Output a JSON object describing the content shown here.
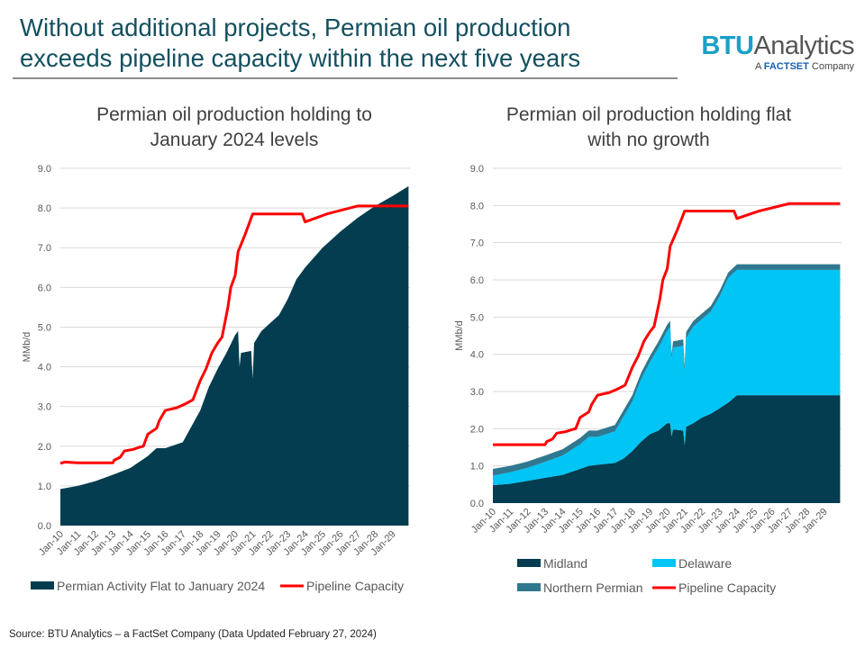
{
  "headline": {
    "line1": "Without additional projects, Permian oil production",
    "line2": "exceeds pipeline capacity within the next five years"
  },
  "logo": {
    "brand_bold": "BTU",
    "brand_rest": "Analytics",
    "tag_prefix": "A",
    "tag_brand": "FACTSET",
    "tag_suffix": "Company"
  },
  "footer": "Source: BTU Analytics – a FactSet Company (Data Updated February 27, 2024)",
  "colors": {
    "midland": "#033d4f",
    "delaware": "#00c5f5",
    "northern_permian": "#2f7890",
    "pipeline": "#ff0000",
    "production": "#033d4f",
    "title": "#14505f"
  },
  "chart_data": [
    {
      "type": "area",
      "title_line1": "Permian oil production holding to",
      "title_line2": "January 2024 levels",
      "ylabel": "MMb/d",
      "ylim": [
        0,
        9
      ],
      "yticks": [
        "0.0",
        "1.0",
        "2.0",
        "3.0",
        "4.0",
        "5.0",
        "6.0",
        "7.0",
        "8.0",
        "9.0"
      ],
      "xticks": [
        "Jan-10",
        "Jan-11",
        "Jan-12",
        "Jan-13",
        "Jan-14",
        "Jan-15",
        "Jan-16",
        "Jan-17",
        "Jan-18",
        "Jan-19",
        "Jan-20",
        "Jan-21",
        "Jan-22",
        "Jan-23",
        "Jan-24",
        "Jan-25",
        "Jan-26",
        "Jan-27",
        "Jan-28",
        "Jan-29"
      ],
      "grid": true,
      "legend_position": "bottom",
      "x": [
        "2010-01",
        "2011-01",
        "2012-01",
        "2013-01",
        "2014-01",
        "2015-01",
        "2015-07",
        "2016-01",
        "2017-01",
        "2017-07",
        "2018-01",
        "2018-07",
        "2019-01",
        "2019-07",
        "2020-01",
        "2020-03",
        "2020-04",
        "2020-05",
        "2020-12",
        "2021-01",
        "2021-02",
        "2021-07",
        "2022-01",
        "2022-07",
        "2023-01",
        "2023-07",
        "2024-01",
        "2025-01",
        "2026-01",
        "2027-01",
        "2028-01",
        "2029-01",
        "2029-12"
      ],
      "series": [
        {
          "name": "Permian Activity Flat to January 2024",
          "kind": "area",
          "values": [
            0.92,
            1.0,
            1.12,
            1.28,
            1.45,
            1.75,
            1.95,
            1.95,
            2.1,
            2.5,
            2.9,
            3.5,
            3.95,
            4.35,
            4.8,
            4.9,
            4.0,
            4.35,
            4.4,
            3.7,
            4.6,
            4.9,
            5.1,
            5.3,
            5.7,
            6.2,
            6.5,
            7.0,
            7.4,
            7.75,
            8.05,
            8.3,
            8.55
          ]
        },
        {
          "name": "Pipeline Capacity",
          "kind": "step-line",
          "points": [
            [
              "2010-01",
              1.57
            ],
            [
              "2010-04",
              1.6
            ],
            [
              "2011-01",
              1.58
            ],
            [
              "2013-01",
              1.58
            ],
            [
              "2013-02",
              1.65
            ],
            [
              "2013-06",
              1.72
            ],
            [
              "2013-09",
              1.88
            ],
            [
              "2014-03",
              1.92
            ],
            [
              "2014-07",
              1.97
            ],
            [
              "2014-10",
              2.0
            ],
            [
              "2015-01",
              2.3
            ],
            [
              "2015-07",
              2.45
            ],
            [
              "2015-09",
              2.65
            ],
            [
              "2016-01",
              2.9
            ],
            [
              "2016-09",
              2.97
            ],
            [
              "2017-03",
              3.07
            ],
            [
              "2017-08",
              3.17
            ],
            [
              "2018-01",
              3.65
            ],
            [
              "2018-05",
              3.95
            ],
            [
              "2018-09",
              4.35
            ],
            [
              "2019-01",
              4.6
            ],
            [
              "2019-04",
              4.75
            ],
            [
              "2019-08",
              5.5
            ],
            [
              "2019-10",
              6.0
            ],
            [
              "2020-01",
              6.3
            ],
            [
              "2020-03",
              6.9
            ],
            [
              "2020-08",
              7.35
            ],
            [
              "2020-10",
              7.55
            ],
            [
              "2021-01",
              7.85
            ],
            [
              "2023-11",
              7.85
            ],
            [
              "2024-01",
              7.65
            ],
            [
              "2025-04",
              7.85
            ],
            [
              "2027-01",
              8.05
            ],
            [
              "2029-12",
              8.05
            ]
          ]
        }
      ]
    },
    {
      "type": "area",
      "title_line1": "Permian oil production holding flat",
      "title_line2": "with no growth",
      "ylabel": "MMb/d",
      "ylim": [
        0,
        9
      ],
      "yticks": [
        "0.0",
        "1.0",
        "2.0",
        "3.0",
        "4.0",
        "5.0",
        "6.0",
        "7.0",
        "8.0",
        "9.0"
      ],
      "xticks": [
        "Jan-10",
        "Jan-11",
        "Jan-12",
        "Jan-13",
        "Jan-14",
        "Jan-15",
        "Jan-16",
        "Jan-17",
        "Jan-18",
        "Jan-19",
        "Jan-20",
        "Jan-21",
        "Jan-22",
        "Jan-23",
        "Jan-24",
        "Jan-25",
        "Jan-26",
        "Jan-27",
        "Jan-28",
        "Jan-29"
      ],
      "grid": true,
      "stacked": true,
      "legend_position": "bottom",
      "x": [
        "2010-01",
        "2011-01",
        "2012-01",
        "2013-01",
        "2014-01",
        "2015-01",
        "2015-07",
        "2016-01",
        "2017-01",
        "2017-07",
        "2018-01",
        "2018-07",
        "2019-01",
        "2019-07",
        "2020-01",
        "2020-03",
        "2020-04",
        "2020-05",
        "2020-12",
        "2021-01",
        "2021-02",
        "2021-07",
        "2022-01",
        "2022-07",
        "2023-01",
        "2023-07",
        "2024-01",
        "2025-01",
        "2026-01",
        "2027-01",
        "2028-01",
        "2029-01",
        "2029-12"
      ],
      "series": [
        {
          "name": "Midland",
          "kind": "area",
          "values": [
            0.48,
            0.52,
            0.6,
            0.68,
            0.76,
            0.92,
            1.0,
            1.03,
            1.08,
            1.2,
            1.4,
            1.65,
            1.85,
            1.95,
            2.15,
            2.15,
            1.8,
            1.98,
            1.95,
            1.55,
            2.05,
            2.15,
            2.3,
            2.4,
            2.55,
            2.7,
            2.9,
            2.9,
            2.9,
            2.9,
            2.9,
            2.9,
            2.9
          ]
        },
        {
          "name": "Delaware",
          "kind": "area",
          "values": [
            0.26,
            0.31,
            0.35,
            0.43,
            0.52,
            0.66,
            0.78,
            0.75,
            0.85,
            1.13,
            1.33,
            1.68,
            1.93,
            2.23,
            2.48,
            2.58,
            2.03,
            2.2,
            2.28,
            1.98,
            2.38,
            2.6,
            2.65,
            2.75,
            3.0,
            3.35,
            3.37,
            3.37,
            3.37,
            3.37,
            3.37,
            3.37,
            3.37
          ]
        },
        {
          "name": "Northern Permian",
          "kind": "area",
          "values": [
            0.18,
            0.17,
            0.17,
            0.17,
            0.17,
            0.17,
            0.17,
            0.17,
            0.17,
            0.17,
            0.17,
            0.17,
            0.17,
            0.17,
            0.17,
            0.17,
            0.17,
            0.17,
            0.17,
            0.17,
            0.17,
            0.15,
            0.15,
            0.15,
            0.15,
            0.15,
            0.15,
            0.15,
            0.15,
            0.15,
            0.15,
            0.15,
            0.15
          ]
        },
        {
          "name": "Pipeline Capacity",
          "kind": "step-line",
          "points": [
            [
              "2010-01",
              1.57
            ],
            [
              "2013-01",
              1.57
            ],
            [
              "2013-02",
              1.65
            ],
            [
              "2013-06",
              1.72
            ],
            [
              "2013-09",
              1.88
            ],
            [
              "2014-03",
              1.92
            ],
            [
              "2014-07",
              1.97
            ],
            [
              "2014-10",
              2.0
            ],
            [
              "2015-01",
              2.3
            ],
            [
              "2015-07",
              2.45
            ],
            [
              "2015-09",
              2.65
            ],
            [
              "2016-01",
              2.9
            ],
            [
              "2016-09",
              2.97
            ],
            [
              "2017-03",
              3.07
            ],
            [
              "2017-08",
              3.17
            ],
            [
              "2018-01",
              3.65
            ],
            [
              "2018-05",
              3.95
            ],
            [
              "2018-09",
              4.35
            ],
            [
              "2019-01",
              4.6
            ],
            [
              "2019-04",
              4.75
            ],
            [
              "2019-08",
              5.5
            ],
            [
              "2019-10",
              6.0
            ],
            [
              "2020-01",
              6.3
            ],
            [
              "2020-03",
              6.9
            ],
            [
              "2020-08",
              7.35
            ],
            [
              "2020-10",
              7.55
            ],
            [
              "2021-01",
              7.85
            ],
            [
              "2023-11",
              7.85
            ],
            [
              "2024-01",
              7.65
            ],
            [
              "2025-04",
              7.85
            ],
            [
              "2027-01",
              8.05
            ],
            [
              "2029-12",
              8.05
            ]
          ]
        }
      ]
    }
  ]
}
